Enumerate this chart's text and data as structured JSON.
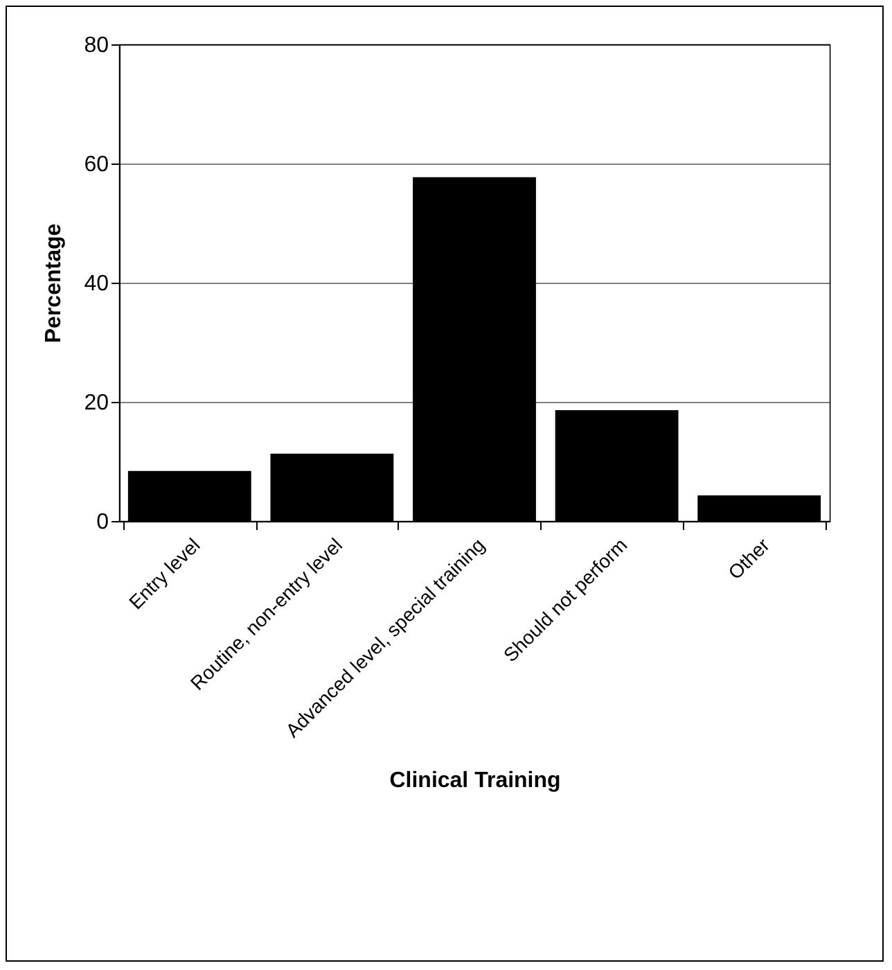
{
  "chart_data": {
    "type": "bar",
    "xlabel": "Clinical Training",
    "ylabel": "Percentage",
    "categories": [
      "Entry level",
      "Routine, non-entry level",
      "Advanced level, special training",
      "Should not perform",
      "Other"
    ],
    "values": [
      8.4,
      11.3,
      57.7,
      18.6,
      4.3
    ],
    "color": "#000000",
    "ylim": [
      0,
      80
    ],
    "yticks": [
      0,
      20,
      40,
      60,
      80
    ],
    "grid": "y"
  }
}
